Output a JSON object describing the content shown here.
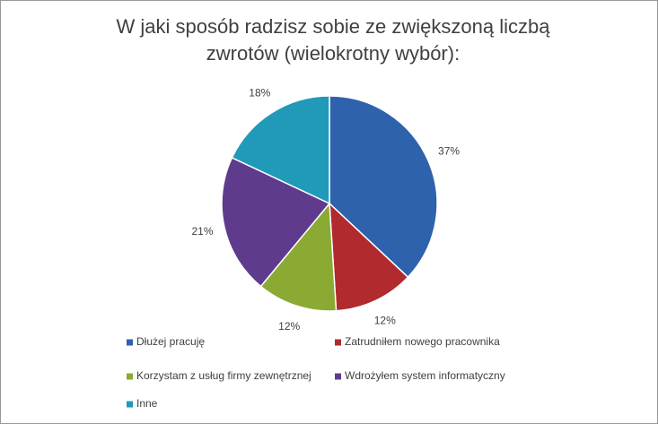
{
  "chart_data": {
    "type": "pie",
    "title": "W jaki sposób radzisz sobie ze zwiększoną liczbą zwrotów (wielokrotny wybór):",
    "categories": [
      "Dłużej pracuję",
      "Zatrudniłem nowego pracownika",
      "Korzystam z usług firmy zewnętrznej",
      "Wdrożyłem system informatyczny",
      "Inne"
    ],
    "values": [
      37,
      12,
      12,
      21,
      18
    ],
    "value_labels": [
      "37%",
      "12%",
      "12%",
      "21%",
      "18%"
    ],
    "colors": [
      "#2e62ac",
      "#b02a2e",
      "#8aaa33",
      "#5f3b8d",
      "#2199b8"
    ]
  }
}
